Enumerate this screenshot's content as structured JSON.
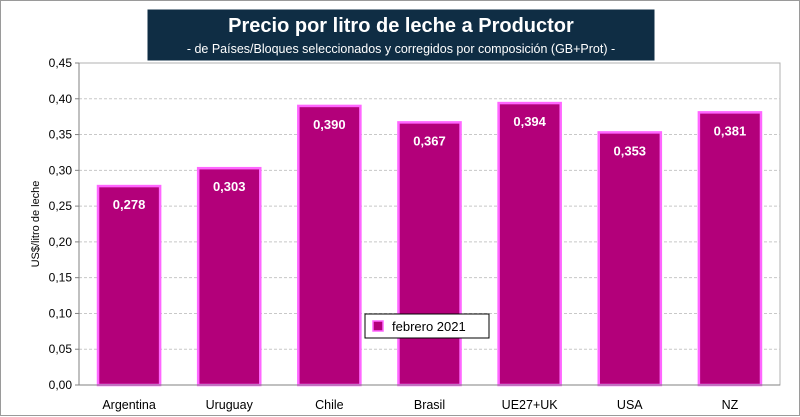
{
  "chart_data": {
    "type": "bar",
    "title": "Precio por litro de leche a Productor",
    "subtitle": "- de Países/Bloques seleccionados y corregidos por composición (GB+Prot) -",
    "ylabel": "US$/litro de leche",
    "xlabel": "",
    "ylim": [
      0,
      0.45
    ],
    "yticks": [
      0.0,
      0.05,
      0.1,
      0.15,
      0.2,
      0.25,
      0.3,
      0.35,
      0.4,
      0.45
    ],
    "ytick_labels": [
      "0,00",
      "0,05",
      "0,10",
      "0,15",
      "0,20",
      "0,25",
      "0,30",
      "0,35",
      "0,40",
      "0,45"
    ],
    "grid": true,
    "legend_position": "bottom-center",
    "categories": [
      "Argentina",
      "Uruguay",
      "Chile",
      "Brasil",
      "UE27+UK",
      "USA",
      "NZ"
    ],
    "series": [
      {
        "name": "febrero 2021",
        "values": [
          0.278,
          0.303,
          0.39,
          0.367,
          0.394,
          0.353,
          0.381
        ],
        "data_labels": [
          "0,278",
          "0,303",
          "0,390",
          "0,367",
          "0,394",
          "0,353",
          "0,381"
        ]
      }
    ],
    "colors": {
      "bar_fill": "#b3007a",
      "bar_edge": "#ff66ff",
      "title_bg": "#0f2d44",
      "plot_bg": "#ffffff",
      "grid": "#c8c8c8"
    }
  }
}
